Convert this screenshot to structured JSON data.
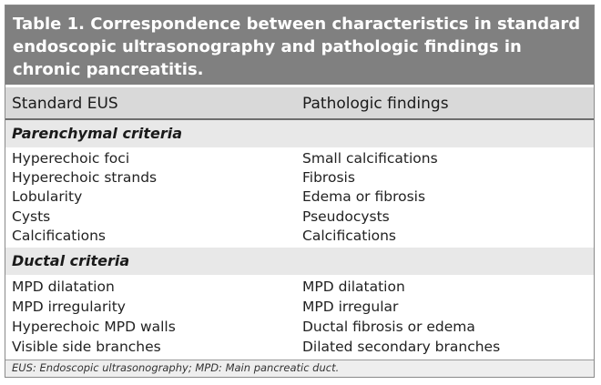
{
  "title": {
    "lines": [
      "Table 1. Correspondence between characteristics in standard",
      "endoscopic ultrasonography and pathologic findings in",
      "chronic pancreatitis."
    ]
  },
  "columns": [
    "Standard EUS",
    "Pathologic findings"
  ],
  "sections": [
    {
      "label": "Parenchymal criteria",
      "rows": [
        [
          "Hyperechoic foci",
          "Small calcifications"
        ],
        [
          "Hyperechoic strands",
          "Fibrosis"
        ],
        [
          "Lobularity",
          "Edema or fibrosis"
        ],
        [
          "Cysts",
          "Pseudocysts"
        ],
        [
          "Calcifications",
          "Calcifications"
        ]
      ]
    },
    {
      "label": "Ductal criteria",
      "rows": [
        [
          "MPD dilatation",
          "MPD dilatation"
        ],
        [
          "MPD irregularity",
          "MPD irregular"
        ],
        [
          "Hyperechoic MPD walls",
          "Ductal fibrosis or edema"
        ],
        [
          "Visible side branches",
          "Dilated secondary branches"
        ]
      ]
    }
  ],
  "footnote": "EUS: Endoscopic ultrasonography; MPD: Main pancreatic duct.",
  "colors": {
    "title_bar": "#808080",
    "header_row": "#d9d9d9",
    "section_band": "#e8e8e8"
  }
}
